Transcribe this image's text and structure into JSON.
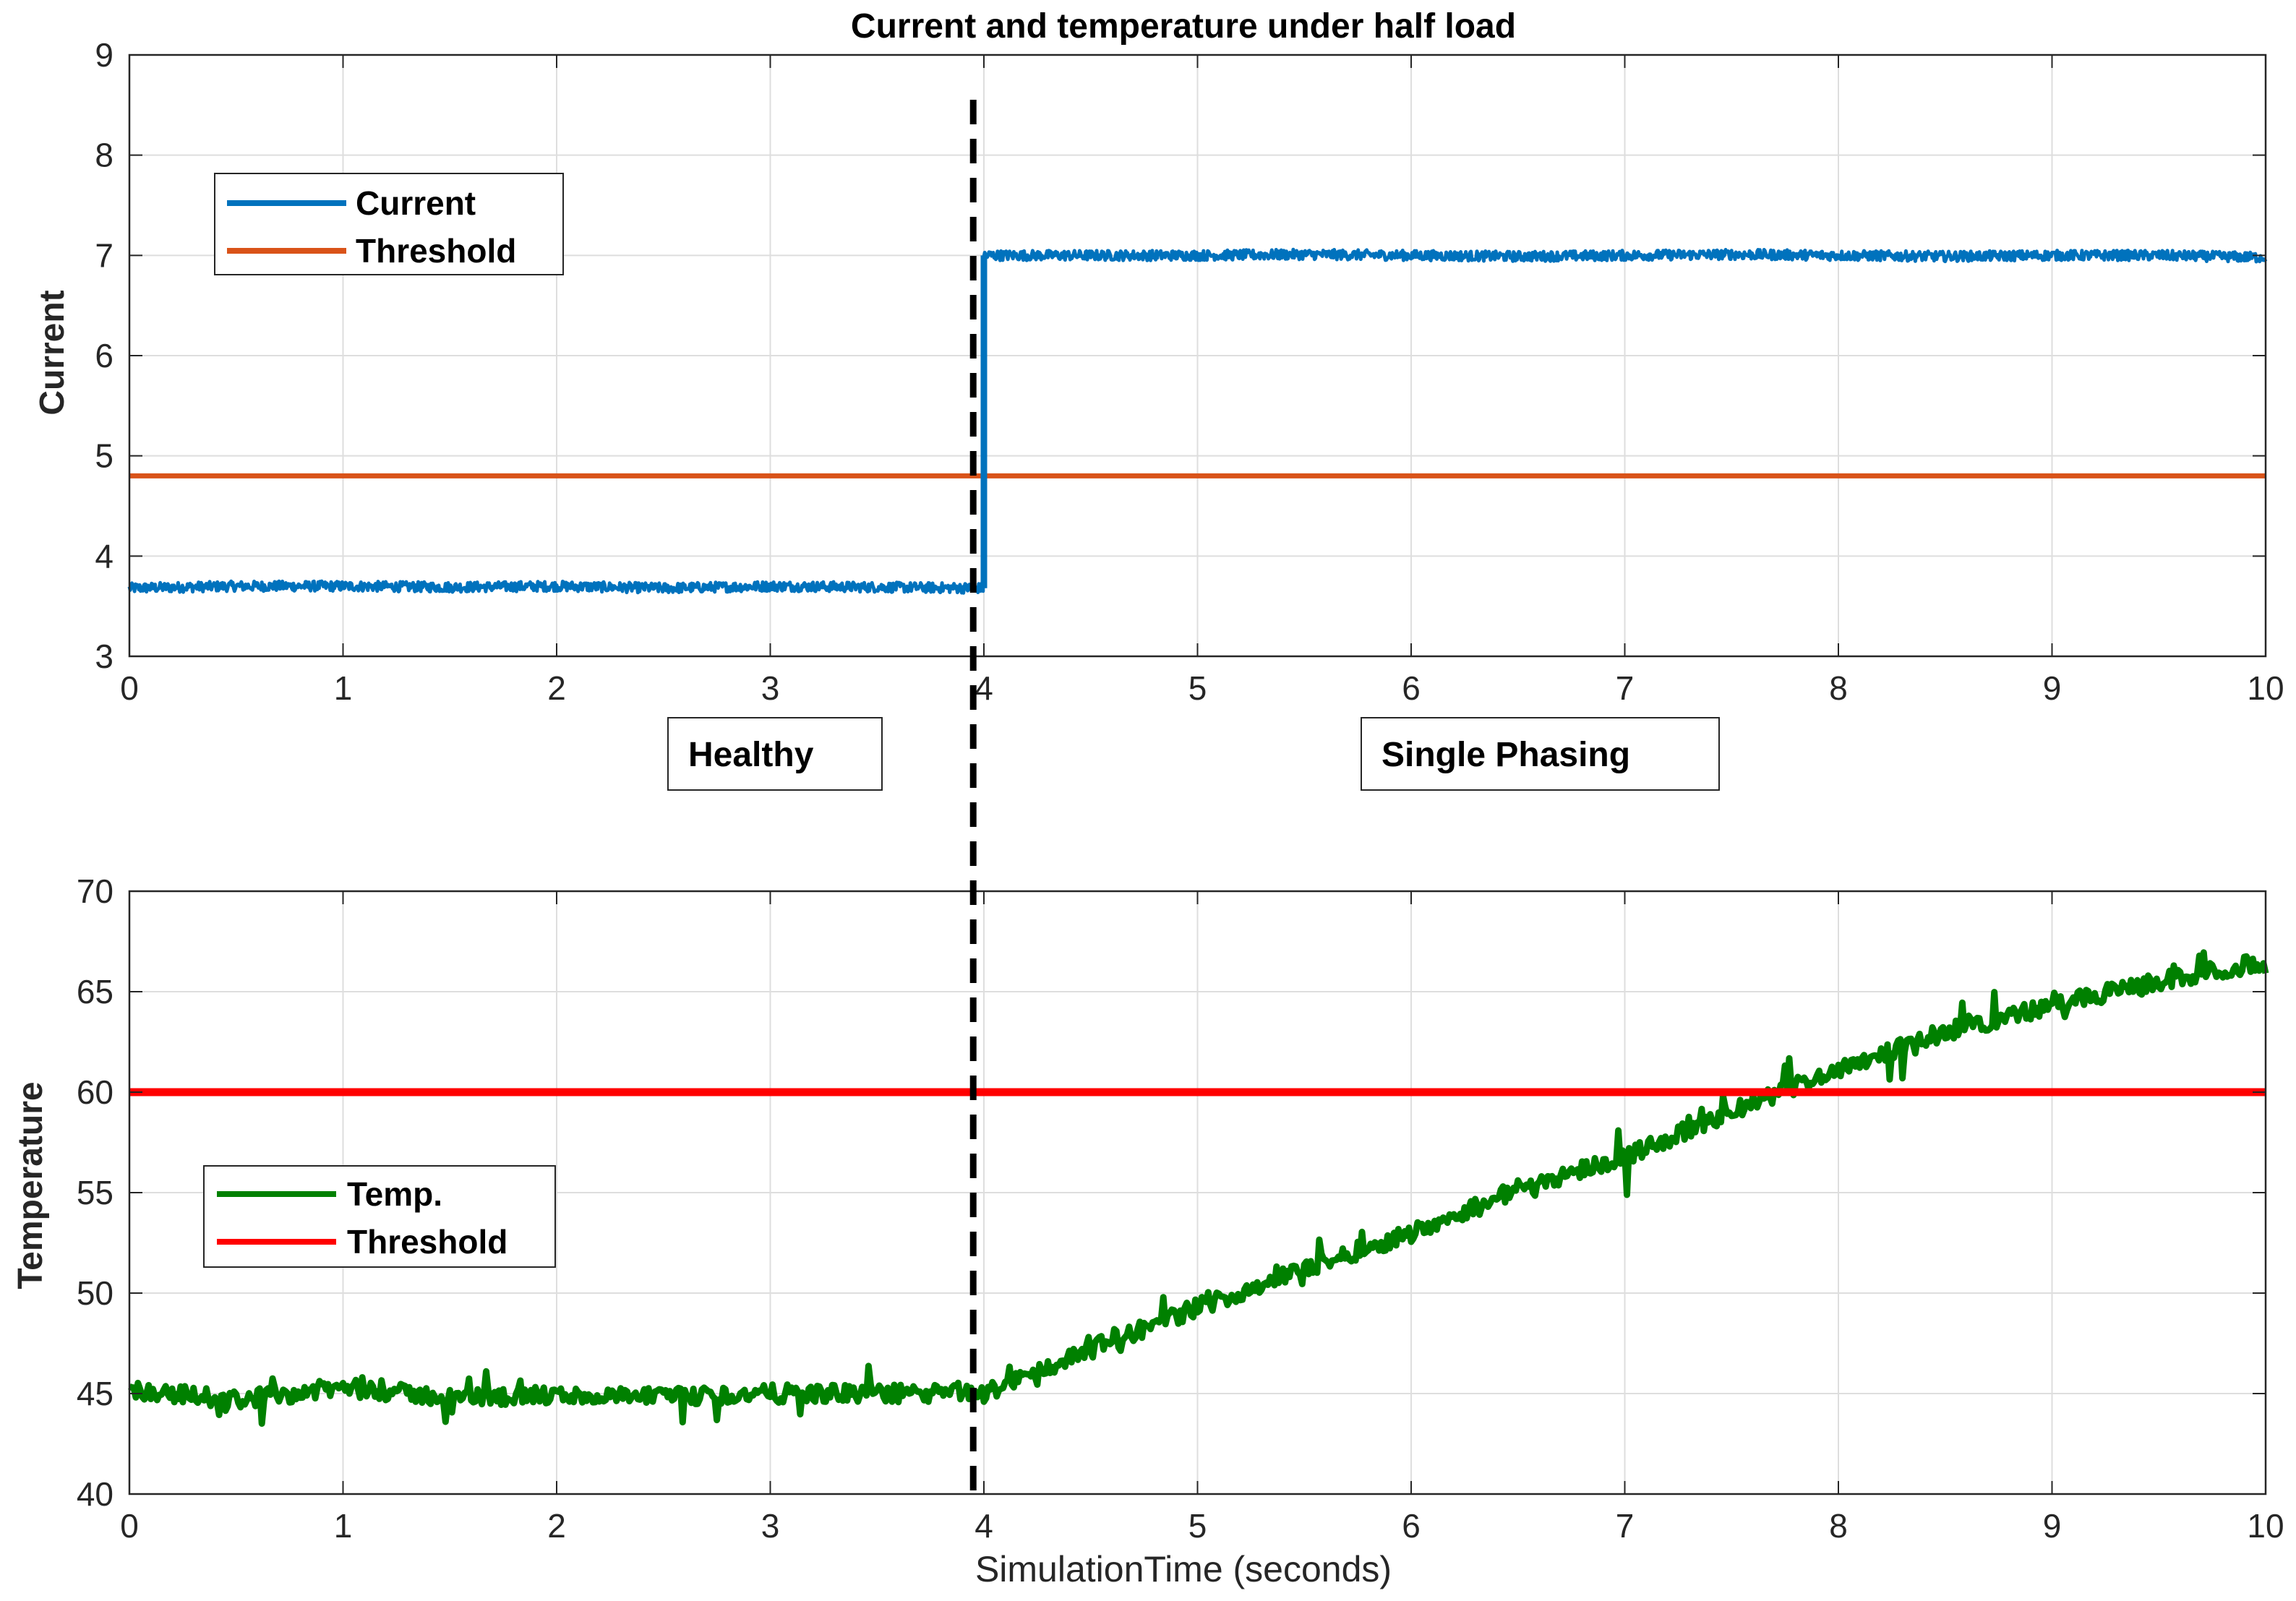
{
  "chart_data": [
    {
      "type": "line",
      "title": "Current and temperature under half load",
      "xlabel": "",
      "ylabel": "Current",
      "xlim": [
        0,
        10
      ],
      "ylim": [
        3,
        9
      ],
      "xticks": [
        "0",
        "1",
        "2",
        "3",
        "4",
        "5",
        "6",
        "7",
        "8",
        "9",
        "10"
      ],
      "yticks": [
        "3",
        "4",
        "5",
        "6",
        "7",
        "8",
        "9"
      ],
      "grid": true,
      "legend_position": "top-left",
      "series": [
        {
          "name": "Current",
          "color": "#0072bd",
          "x": [
            0,
            0.5,
            1,
            1.5,
            2,
            2.5,
            3,
            3.5,
            3.99,
            4.0,
            4.5,
            5,
            5.5,
            6,
            6.5,
            7,
            7.5,
            8,
            8.5,
            9,
            9.5,
            10
          ],
          "y": [
            3.68,
            3.7,
            3.7,
            3.69,
            3.7,
            3.68,
            3.7,
            3.69,
            3.68,
            7.0,
            7.0,
            7.0,
            7.01,
            7.0,
            6.99,
            7.0,
            7.01,
            7.0,
            6.99,
            7.0,
            7.0,
            6.98
          ]
        },
        {
          "name": "Threshold",
          "color": "#d95319",
          "x": [
            0,
            10
          ],
          "y": [
            4.8,
            4.8
          ]
        }
      ],
      "annotations": [
        "Healthy",
        "Single Phasing"
      ]
    },
    {
      "type": "line",
      "title": "",
      "xlabel": "SimulationTime (seconds)",
      "ylabel": "Temperature",
      "xlim": [
        0,
        10
      ],
      "ylim": [
        40,
        70
      ],
      "xticks": [
        "0",
        "1",
        "2",
        "3",
        "4",
        "5",
        "6",
        "7",
        "8",
        "9",
        "10"
      ],
      "yticks": [
        "40",
        "45",
        "50",
        "55",
        "60",
        "65",
        "70"
      ],
      "grid": true,
      "legend_position": "middle-left",
      "series": [
        {
          "name": "Temp.",
          "color": "#008000",
          "x": [
            0,
            0.5,
            1,
            1.5,
            2,
            2.5,
            3,
            3.5,
            4,
            4.5,
            5,
            5.5,
            6,
            6.5,
            7,
            7.5,
            8,
            8.5,
            9,
            9.5,
            10
          ],
          "y": [
            45.2,
            44.7,
            45.3,
            44.8,
            44.9,
            44.8,
            45.0,
            45.0,
            45.0,
            47.2,
            49.3,
            51.2,
            53.0,
            55.2,
            56.8,
            59.0,
            61.2,
            63.0,
            64.3,
            65.5,
            66.5
          ]
        },
        {
          "name": "Threshold",
          "color": "#ff0000",
          "x": [
            0,
            10
          ],
          "y": [
            60,
            60
          ]
        }
      ]
    }
  ],
  "fault_time": 3.95
}
